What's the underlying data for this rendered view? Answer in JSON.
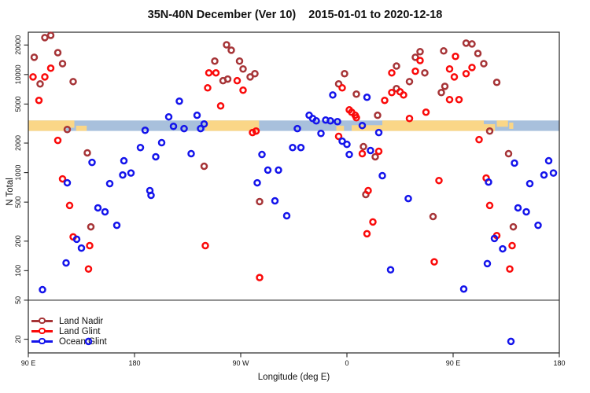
{
  "title": {
    "range_label": "35N-40N December (Ver 10)",
    "date_label": "2015-01-01 to 2020-12-18"
  },
  "axes": {
    "x": {
      "label": "Longitude (deg E)",
      "lon_start": 90,
      "lon_end": 540,
      "ticks": [
        {
          "lon": 90,
          "label": "90 E"
        },
        {
          "lon": 180,
          "label": "180"
        },
        {
          "lon": 270,
          "label": "90 W"
        },
        {
          "lon": 360,
          "label": "0"
        },
        {
          "lon": 450,
          "label": "90 E"
        },
        {
          "lon": 540,
          "label": "180"
        }
      ]
    },
    "y": {
      "label": "N Total",
      "scale": "log",
      "range": [
        14.5,
        27000
      ],
      "ticks": [
        {
          "n": 20,
          "label": "20"
        },
        {
          "n": 50,
          "label": "50"
        },
        {
          "n": 100,
          "label": "100"
        },
        {
          "n": 200,
          "label": "200"
        },
        {
          "n": 500,
          "label": "500"
        },
        {
          "n": 1000,
          "label": "1000"
        },
        {
          "n": 2000,
          "label": "2000"
        },
        {
          "n": 5000,
          "label": "5000"
        },
        {
          "n": 10000,
          "label": "10000"
        },
        {
          "n": 20000,
          "label": "20000"
        }
      ]
    }
  },
  "threshold_line": {
    "n": 50,
    "color": "#333333"
  },
  "legend": {
    "items": [
      {
        "label": "Land Nadir",
        "color": "#A63437"
      },
      {
        "label": "Land Glint",
        "color": "#FA0A0A"
      },
      {
        "label": "Ocean Glint",
        "color": "#1414EB"
      }
    ]
  },
  "chart_data": {
    "type": "scatter",
    "title": "35N-40N December (Ver 10)   2015-01-01 to 2020-12-18",
    "xlabel": "Longitude (deg E)",
    "ylabel": "N Total",
    "x_axis_wraps": "longitude runs 90E..180..90W..0..90E..180 (450 deg span)",
    "grid": false,
    "legend_position": "bottom-left",
    "map_band": {
      "description": "35N-40N world-map strip drawn across plot",
      "n_top": 3400,
      "n_bottom": 2660,
      "ocean_color": "#A8C0DC",
      "land_color": "#FAD687",
      "land_segments": [
        {
          "lon0": 90,
          "lon1": 122,
          "top": 0,
          "h": 1
        },
        {
          "lon0": 122,
          "lon1": 129,
          "top": 0,
          "h": 0.7
        },
        {
          "lon0": 130.5,
          "lon1": 139.5,
          "top": 0.5,
          "h": 0.5
        },
        {
          "lon0": 240,
          "lon1": 285.5,
          "top": 0,
          "h": 1
        },
        {
          "lon0": 351,
          "lon1": 357.5,
          "top": 0.5,
          "h": 0.5
        },
        {
          "lon0": 364,
          "lon1": 390,
          "top": 0.45,
          "h": 0.55
        },
        {
          "lon0": 390,
          "lon1": 476,
          "top": 0,
          "h": 1
        },
        {
          "lon0": 476,
          "lon1": 485.5,
          "top": 0.35,
          "h": 0.65
        },
        {
          "lon0": 487,
          "lon1": 496.5,
          "top": 0,
          "h": 0.6
        },
        {
          "lon0": 497.5,
          "lon1": 501,
          "top": 0.2,
          "h": 0.6
        }
      ]
    },
    "series": [
      {
        "name": "Land Nadir",
        "color": "#A63437",
        "points": [
          [
            104,
            23800
          ],
          [
            109,
            25100
          ],
          [
            115,
            16700
          ],
          [
            119,
            12900
          ],
          [
            95,
            15000
          ],
          [
            100,
            8020
          ],
          [
            128,
            8470
          ],
          [
            123,
            2750
          ],
          [
            140,
            1590
          ],
          [
            239,
            1160
          ],
          [
            143,
            280
          ],
          [
            258,
            20100
          ],
          [
            262,
            17700
          ],
          [
            248,
            13700
          ],
          [
            269,
            13700
          ],
          [
            272,
            11400
          ],
          [
            255,
            8650
          ],
          [
            259,
            8990
          ],
          [
            278,
            9460
          ],
          [
            282,
            10200
          ],
          [
            358,
            10200
          ],
          [
            353,
            8020
          ],
          [
            368,
            6310
          ],
          [
            374,
            1840
          ],
          [
            384,
            1450
          ],
          [
            386,
            3840
          ],
          [
            286,
            506
          ],
          [
            376,
            597
          ],
          [
            402,
            12200
          ],
          [
            418,
            15000
          ],
          [
            422,
            17100
          ],
          [
            426,
            10400
          ],
          [
            413,
            8470
          ],
          [
            402,
            7180
          ],
          [
            440,
            6550
          ],
          [
            443,
            7580
          ],
          [
            433,
            356
          ],
          [
            442,
            17400
          ],
          [
            461,
            20900
          ],
          [
            466,
            20500
          ],
          [
            471,
            16400
          ],
          [
            476,
            12900
          ],
          [
            487,
            8320
          ],
          [
            481,
            2650
          ],
          [
            497,
            1560
          ],
          [
            501,
            280
          ]
        ]
      },
      {
        "name": "Land Glint",
        "color": "#FA0A0A",
        "points": [
          [
            109,
            11600
          ],
          [
            94,
            9460
          ],
          [
            104,
            9460
          ],
          [
            99,
            5450
          ],
          [
            115,
            2130
          ],
          [
            119,
            863
          ],
          [
            125,
            462
          ],
          [
            128,
            221
          ],
          [
            142,
            180
          ],
          [
            141,
            104
          ],
          [
            243,
            10400
          ],
          [
            249,
            10400
          ],
          [
            267,
            8650
          ],
          [
            242,
            7310
          ],
          [
            272,
            6920
          ],
          [
            253,
            4790
          ],
          [
            280,
            2560
          ],
          [
            283,
            2650
          ],
          [
            240,
            180
          ],
          [
            286,
            85
          ],
          [
            356,
            7310
          ],
          [
            362,
            4360
          ],
          [
            364,
            4130
          ],
          [
            367,
            3840
          ],
          [
            368,
            3630
          ],
          [
            353,
            2340
          ],
          [
            373,
            1560
          ],
          [
            387,
            1650
          ],
          [
            392,
            5450
          ],
          [
            378,
            655
          ],
          [
            382,
            314
          ],
          [
            377,
            238
          ],
          [
            398,
            10400
          ],
          [
            422,
            13900
          ],
          [
            418,
            10800
          ],
          [
            447,
            11400
          ],
          [
            452,
            15300
          ],
          [
            461,
            10200
          ],
          [
            451,
            9460
          ],
          [
            466,
            11800
          ],
          [
            408,
            6190
          ],
          [
            405,
            6670
          ],
          [
            398,
            6550
          ],
          [
            427,
            4130
          ],
          [
            413,
            3560
          ],
          [
            447,
            5550
          ],
          [
            455,
            5550
          ],
          [
            472,
            2170
          ],
          [
            478,
            880
          ],
          [
            438,
            830
          ],
          [
            481,
            462
          ],
          [
            500,
            180
          ],
          [
            498,
            104
          ],
          [
            434,
            123
          ],
          [
            487,
            228
          ]
        ]
      },
      {
        "name": "Ocean Glint",
        "color": "#1414EB",
        "points": [
          [
            144,
            1270
          ],
          [
            123,
            787
          ],
          [
            159,
            772
          ],
          [
            171,
            1320
          ],
          [
            170,
            945
          ],
          [
            177,
            990
          ],
          [
            185,
            1800
          ],
          [
            189,
            2700
          ],
          [
            198,
            1450
          ],
          [
            203,
            2020
          ],
          [
            209,
            3700
          ],
          [
            213,
            2960
          ],
          [
            218,
            5350
          ],
          [
            222,
            2810
          ],
          [
            228,
            1560
          ],
          [
            233,
            3840
          ],
          [
            236,
            2810
          ],
          [
            239,
            3130
          ],
          [
            193,
            655
          ],
          [
            288,
            1530
          ],
          [
            293,
            1060
          ],
          [
            302,
            1060
          ],
          [
            284,
            787
          ],
          [
            318,
            2810
          ],
          [
            314,
            1800
          ],
          [
            321,
            1800
          ],
          [
            328,
            3840
          ],
          [
            331,
            3560
          ],
          [
            334,
            3370
          ],
          [
            338,
            2510
          ],
          [
            342,
            3430
          ],
          [
            346,
            3370
          ],
          [
            348,
            6190
          ],
          [
            352,
            3310
          ],
          [
            356,
            2090
          ],
          [
            360,
            1940
          ],
          [
            362,
            1530
          ],
          [
            373,
            3020
          ],
          [
            377,
            5860
          ],
          [
            387,
            2560
          ],
          [
            380,
            1680
          ],
          [
            390,
            930
          ],
          [
            299,
            515
          ],
          [
            309,
            363
          ],
          [
            194,
            586
          ],
          [
            149,
            437
          ],
          [
            155,
            398
          ],
          [
            165,
            290
          ],
          [
            131,
            209
          ],
          [
            135,
            170
          ],
          [
            122,
            120
          ],
          [
            102,
            64
          ],
          [
            141,
            19
          ],
          [
            412,
            544
          ],
          [
            502,
            1250
          ],
          [
            531,
            1320
          ],
          [
            527,
            945
          ],
          [
            535,
            990
          ],
          [
            515,
            772
          ],
          [
            480,
            800
          ],
          [
            505,
            437
          ],
          [
            512,
            398
          ],
          [
            522,
            290
          ],
          [
            485,
            213
          ],
          [
            492,
            167
          ],
          [
            479,
            118
          ],
          [
            397,
            102
          ],
          [
            459,
            65
          ],
          [
            499,
            19
          ]
        ]
      }
    ]
  }
}
